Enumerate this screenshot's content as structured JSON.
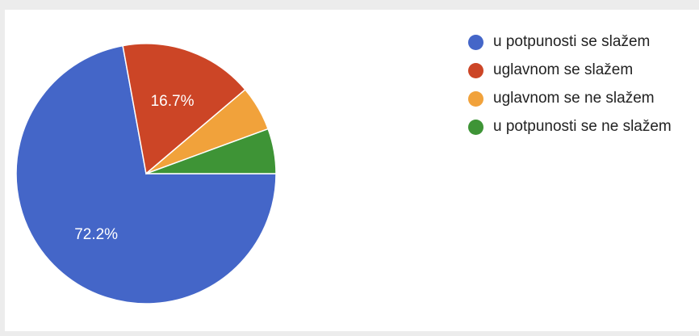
{
  "chart_data": {
    "type": "pie",
    "slices": [
      {
        "label": "u potpunosti se slažem",
        "value": 72.2,
        "value_label": "72.2%",
        "color": "#4466c8"
      },
      {
        "label": "uglavnom se slažem",
        "value": 16.7,
        "value_label": "16.7%",
        "color": "#cc4526"
      },
      {
        "label": "uglavnom se ne slažem",
        "value": 5.6,
        "value_label": "",
        "color": "#f1a23b"
      },
      {
        "label": "u potpunosti se ne slažem",
        "value": 5.6,
        "value_label": "",
        "color": "#3e9436"
      }
    ],
    "legend_position": "right",
    "start_direction": "east",
    "direction": "clockwise"
  }
}
